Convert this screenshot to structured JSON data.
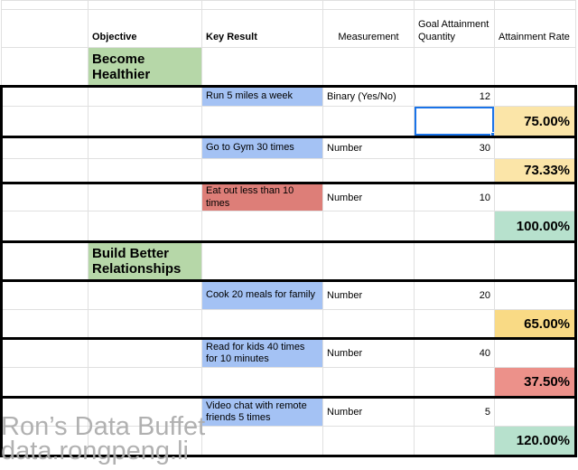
{
  "sheet": {
    "gridline_color": "#e0e0e0",
    "selection_color": "#1a73e8",
    "columns": [
      {
        "header": "",
        "width": 96
      },
      {
        "header": "Objective",
        "width": 126,
        "bold": true
      },
      {
        "header": "Key Result",
        "width": 134,
        "bold": true
      },
      {
        "header": "Measurement",
        "width": 101,
        "align": "center"
      },
      {
        "header": "Goal Attainment Quantity",
        "width": 89
      },
      {
        "header": "Attainment Rate",
        "width": 90
      }
    ],
    "fills": {
      "objective_green": "#b6d7a8",
      "key_result_blue": "#a4c2f4",
      "key_result_red": "#dd7e78",
      "rate_yellow": "#fbe5a8",
      "rate_gold": "#f9da85",
      "rate_green": "#b7e1cd",
      "rate_red": "#ec918a"
    },
    "rows": [
      {
        "h": 10,
        "cells": []
      },
      {
        "h": 42,
        "header": true
      },
      {
        "h": 43,
        "cells": [
          {
            "col": 1,
            "text": "Become Healthier",
            "type": "objective",
            "fill": "objective_green"
          }
        ]
      },
      {
        "h": 22,
        "body": true,
        "thickTop": true,
        "cells": [
          {
            "col": 2,
            "text": "Run 5 miles a week",
            "type": "key-result",
            "fill": "key_result_blue"
          },
          {
            "col": 3,
            "text": "Binary (Yes/No)",
            "type": "measurement"
          },
          {
            "col": 4,
            "text": "12",
            "type": "quantity"
          }
        ]
      },
      {
        "h": 34,
        "body": true,
        "cells": [
          {
            "col": 4,
            "text": "",
            "type": "selected",
            "selected": true
          },
          {
            "col": 5,
            "text": "75.00%",
            "type": "rate",
            "fill": "rate_yellow"
          }
        ]
      },
      {
        "h": 24,
        "body": true,
        "thickTop": true,
        "cells": [
          {
            "col": 2,
            "text": "Go to Gym 30 times",
            "type": "key-result",
            "fill": "key_result_blue"
          },
          {
            "col": 3,
            "text": "Number",
            "type": "measurement"
          },
          {
            "col": 4,
            "text": "30",
            "type": "quantity"
          }
        ]
      },
      {
        "h": 27,
        "body": true,
        "cells": [
          {
            "col": 5,
            "text": "73.33%",
            "type": "rate",
            "fill": "rate_yellow"
          }
        ]
      },
      {
        "h": 29,
        "body": true,
        "thickTop": true,
        "cells": [
          {
            "col": 2,
            "text": "Eat out less than 10 times",
            "type": "key-result",
            "fill": "key_result_red"
          },
          {
            "col": 3,
            "text": "Number",
            "type": "measurement"
          },
          {
            "col": 4,
            "text": "10",
            "type": "quantity"
          }
        ]
      },
      {
        "h": 34,
        "body": true,
        "cells": [
          {
            "col": 5,
            "text": "100.00%",
            "type": "rate",
            "fill": "rate_green"
          }
        ]
      },
      {
        "h": 43,
        "body": true,
        "thickTop": true,
        "cells": [
          {
            "col": 1,
            "text": "Build Better Relationships",
            "type": "objective",
            "fill": "objective_green"
          }
        ]
      },
      {
        "h": 32,
        "body": true,
        "thickTop": true,
        "cells": [
          {
            "col": 2,
            "text": "Cook 20 meals for family",
            "type": "key-result",
            "fill": "key_result_blue"
          },
          {
            "col": 3,
            "text": "Number",
            "type": "measurement"
          },
          {
            "col": 4,
            "text": "20",
            "type": "quantity"
          }
        ]
      },
      {
        "h": 32,
        "body": true,
        "cells": [
          {
            "col": 5,
            "text": "65.00%",
            "type": "rate",
            "fill": "rate_gold"
          }
        ]
      },
      {
        "h": 32,
        "body": true,
        "thickTop": true,
        "cells": [
          {
            "col": 2,
            "text": "Read for kids 40 times for 10 minutes",
            "type": "key-result",
            "fill": "key_result_blue"
          },
          {
            "col": 3,
            "text": "Number",
            "type": "measurement"
          },
          {
            "col": 4,
            "text": "40",
            "type": "quantity"
          }
        ]
      },
      {
        "h": 33,
        "body": true,
        "cells": [
          {
            "col": 5,
            "text": "37.50%",
            "type": "rate",
            "fill": "rate_red"
          }
        ]
      },
      {
        "h": 32,
        "body": true,
        "thickTop": true,
        "cells": [
          {
            "col": 2,
            "text": "Video chat with remote friends 5 times",
            "type": "key-result",
            "fill": "key_result_blue"
          },
          {
            "col": 3,
            "text": "Number",
            "type": "measurement"
          },
          {
            "col": 4,
            "text": "5",
            "type": "quantity"
          }
        ]
      },
      {
        "h": 33,
        "body": true,
        "cells": [
          {
            "col": 5,
            "text": "120.00%",
            "type": "rate",
            "fill": "rate_green"
          }
        ]
      }
    ]
  },
  "watermark": {
    "line1": "Ron’s Data Buffet",
    "line2": "data.rongpeng.li"
  }
}
